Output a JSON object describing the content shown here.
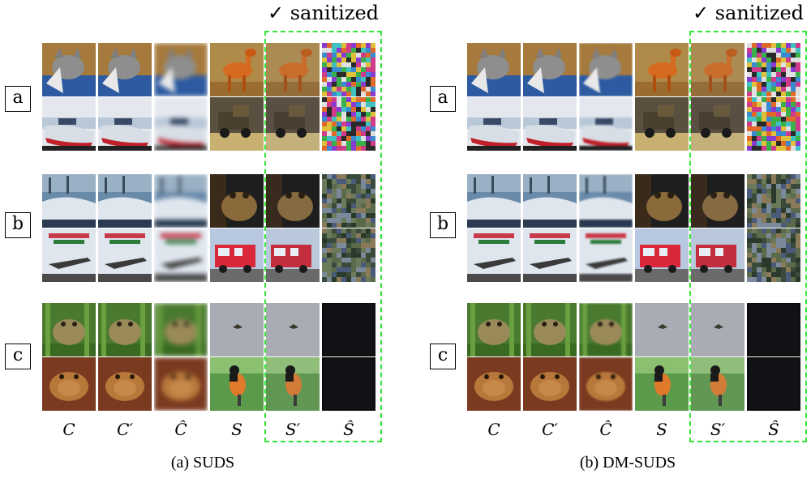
{
  "sanitized_label": "✓ sanitized",
  "row_labels": [
    "a",
    "b",
    "c"
  ],
  "column_labels": [
    "C",
    "C′",
    "Ĉ",
    "S",
    "S′",
    "Ŝ"
  ],
  "panels": [
    {
      "id": "suds",
      "caption": "(a) SUDS"
    },
    {
      "id": "dm-suds",
      "caption": "(b) DM-SUDS"
    }
  ],
  "images": {
    "cat": "cover image: cat",
    "boat": "cover image: boat",
    "deer": "secret image: deer",
    "truck": "secret image: truck",
    "ship": "cover image: ship",
    "plane": "cover image: airplane",
    "frog_sec": "secret image: frog",
    "firetruck": "secret image: fire truck",
    "frog_green": "cover image: frog",
    "frog_brown": "cover image: frog",
    "sky_bird": "secret image: bird in sky",
    "bird": "secret image: bird"
  },
  "colors": {
    "sanitized_border": "#33e633",
    "text": "#000000"
  }
}
